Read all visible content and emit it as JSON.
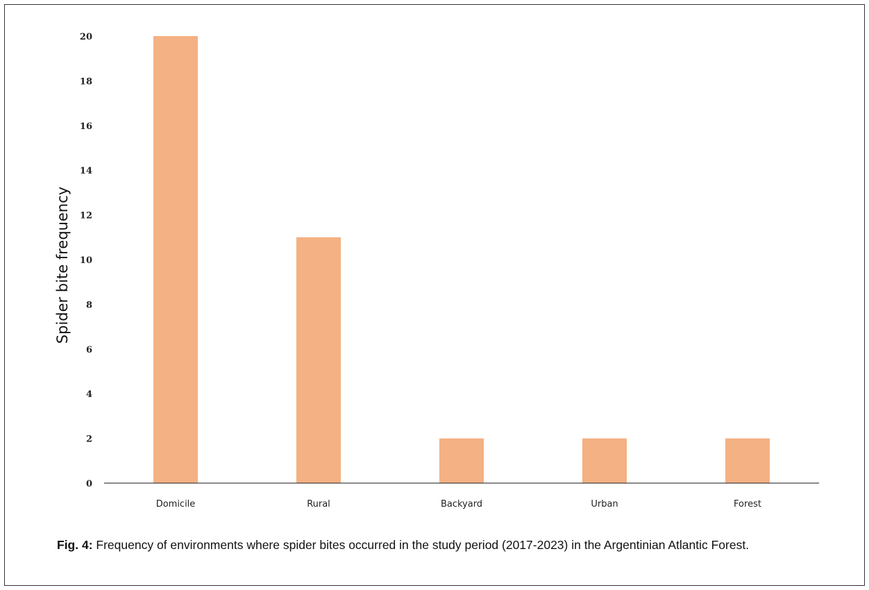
{
  "chart_data": {
    "type": "bar",
    "categories": [
      "Domicile",
      "Rural",
      "Backyard",
      "Urban",
      "Forest"
    ],
    "values": [
      20,
      11,
      2,
      2,
      2
    ],
    "ylabel": "Spider bite frequency",
    "xlabel": "",
    "ylim": [
      0,
      20
    ],
    "yticks": [
      0,
      2,
      4,
      6,
      8,
      10,
      12,
      14,
      16,
      18,
      20
    ],
    "bar_color": "#f4b183",
    "grid": false
  },
  "caption": {
    "label": "Fig. 4:",
    "text": "Frequency of environments where spider bites occurred in the study period (2017-2023) in the Argentinian Atlantic Forest."
  }
}
